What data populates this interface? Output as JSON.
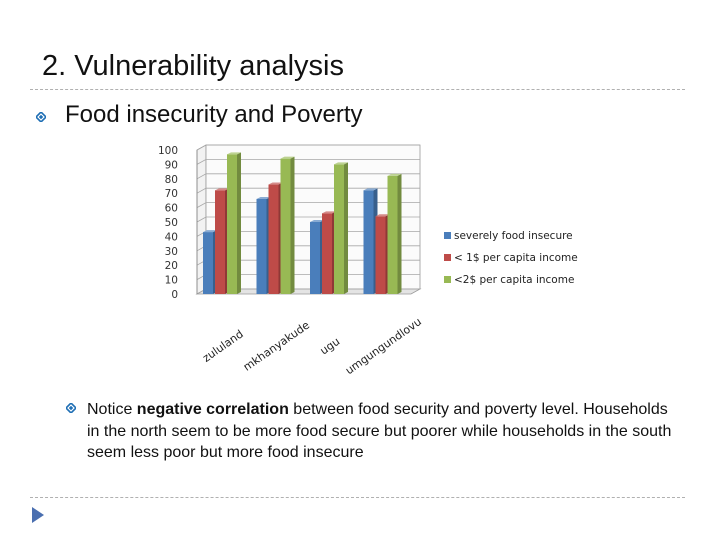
{
  "slide": {
    "title": "2.  Vulnerability analysis",
    "heading": "Food insecurity and Poverty",
    "notice_pre": "Notice ",
    "notice_bold": "negative correlation",
    "notice_post": " between food security and poverty level. Households in the north seem to be more food secure but poorer while households in the south seem less poor but more food insecure"
  },
  "colors": {
    "accent": "#1f6fb5",
    "rule": "#b0b0b0"
  },
  "icons": {
    "bullet": "diamond-bullet-icon",
    "nav": "next-slide-arrow-icon"
  },
  "chart_data": {
    "type": "bar",
    "title": "",
    "xlabel": "",
    "ylabel": "",
    "ylim": [
      0,
      100
    ],
    "yticks": [
      0,
      10,
      20,
      30,
      40,
      50,
      60,
      70,
      80,
      90,
      100
    ],
    "categories": [
      "zululand",
      "mkhanyakude",
      "ugu",
      "umgungundlovu"
    ],
    "series": [
      {
        "name": "severely food insecure",
        "color": "#4a7ebb",
        "values": [
          43,
          66,
          50,
          72
        ]
      },
      {
        "name": "< 1$ per capita income",
        "color": "#be4b48",
        "values": [
          72,
          76,
          56,
          54
        ]
      },
      {
        "name": "<2$ per capita income",
        "color": "#98b954",
        "values": [
          97,
          94,
          90,
          82
        ]
      }
    ],
    "legend_position": "right",
    "grid": true
  }
}
